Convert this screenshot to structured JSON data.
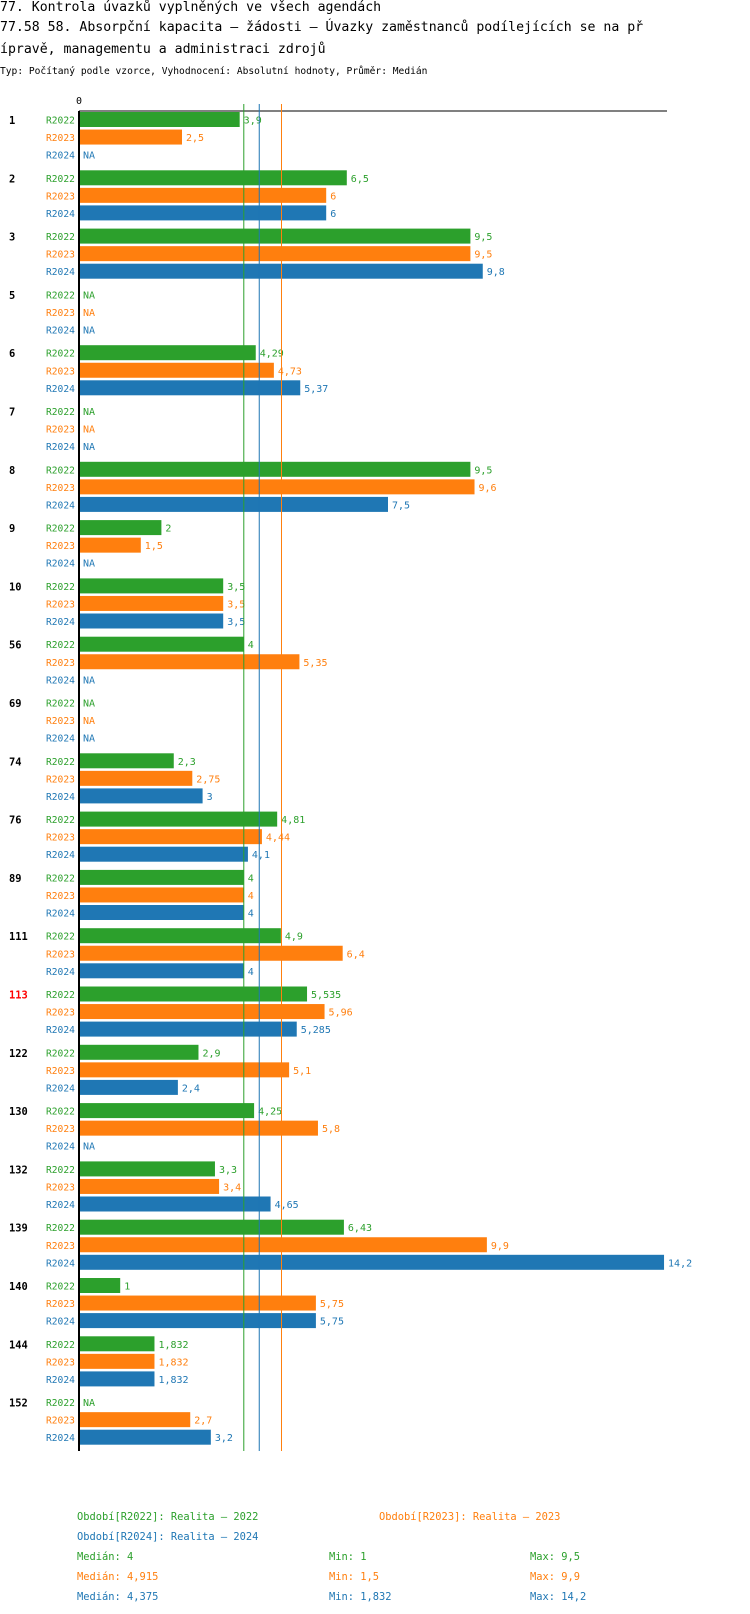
{
  "header": {
    "line1": "77. Kontrola úvazků vyplněných ve všech agendách",
    "line2": "77.58 58. Absorpční kapacita – žádosti – Úvazky zaměstnanců podílejících se na př",
    "line3": "ípravě, managementu a administraci zdrojů",
    "subtitle": "Typ: Počítaný podle vzorce, Vyhodnocení: Absolutní hodnoty, Průměr: Medián"
  },
  "colors": {
    "R2022": "#2ca02c",
    "R2023": "#ff7f0e",
    "R2024": "#1f77b4",
    "highlight": "#ff0000"
  },
  "chart_data": {
    "type": "bar",
    "orientation": "horizontal",
    "title": "77.58 58. Absorpční kapacita – žádosti – Úvazky zaměstnanců podílejících se na přípravě, managementu a administraci zdrojů",
    "axis_zero_label": "0",
    "xlim": [
      0,
      14.2
    ],
    "series_names": [
      "R2022",
      "R2023",
      "R2024"
    ],
    "highlight_category": "113",
    "categories": [
      "1",
      "2",
      "3",
      "5",
      "6",
      "7",
      "8",
      "9",
      "10",
      "56",
      "69",
      "74",
      "76",
      "89",
      "111",
      "113",
      "122",
      "130",
      "132",
      "139",
      "140",
      "144",
      "152"
    ],
    "series": [
      {
        "name": "R2022",
        "values": [
          3.9,
          6.5,
          9.5,
          null,
          4.29,
          null,
          9.5,
          2,
          3.5,
          4,
          null,
          2.3,
          4.81,
          4,
          4.9,
          5.535,
          2.9,
          4.25,
          3.3,
          6.43,
          1,
          1.832,
          null
        ],
        "labels": [
          "3,9",
          "6,5",
          "9,5",
          "NA",
          "4,29",
          "NA",
          "9,5",
          "2",
          "3,5",
          "4",
          "NA",
          "2,3",
          "4,81",
          "4",
          "4,9",
          "5,535",
          "2,9",
          "4,25",
          "3,3",
          "6,43",
          "1",
          "1,832",
          "NA"
        ]
      },
      {
        "name": "R2023",
        "values": [
          2.5,
          6,
          9.5,
          null,
          4.73,
          null,
          9.6,
          1.5,
          3.5,
          5.35,
          null,
          2.75,
          4.44,
          4,
          6.4,
          5.96,
          5.1,
          5.8,
          3.4,
          9.9,
          5.75,
          1.832,
          2.7
        ],
        "labels": [
          "2,5",
          "6",
          "9,5",
          "NA",
          "4,73",
          "NA",
          "9,6",
          "1,5",
          "3,5",
          "5,35",
          "NA",
          "2,75",
          "4,44",
          "4",
          "6,4",
          "5,96",
          "5,1",
          "5,8",
          "3,4",
          "9,9",
          "5,75",
          "1,832",
          "2,7"
        ]
      },
      {
        "name": "R2024",
        "values": [
          null,
          6,
          9.8,
          null,
          5.37,
          null,
          7.5,
          null,
          3.5,
          null,
          null,
          3,
          4.1,
          4,
          4,
          5.285,
          2.4,
          null,
          4.65,
          14.2,
          5.75,
          1.832,
          3.2
        ],
        "labels": [
          "NA",
          "6",
          "9,8",
          "NA",
          "5,37",
          "NA",
          "7,5",
          "NA",
          "3,5",
          "NA",
          "NA",
          "3",
          "4,1",
          "4",
          "4",
          "5,285",
          "2,4",
          "NA",
          "4,65",
          "14,2",
          "5,75",
          "1,832",
          "3,2"
        ]
      }
    ],
    "reference_lines": [
      {
        "series": "R2022",
        "value": 4
      },
      {
        "series": "R2024",
        "value": 4.375
      },
      {
        "series": "R2023",
        "value": 4.915
      }
    ]
  },
  "legend": {
    "items": [
      {
        "series": "R2022",
        "text": "Období[R2022]: Realita – 2022"
      },
      {
        "series": "R2023",
        "text": "Období[R2023]: Realita – 2023"
      },
      {
        "series": "R2024",
        "text": "Období[R2024]: Realita – 2024"
      }
    ]
  },
  "stats": [
    {
      "series": "R2022",
      "median": "Medián: 4",
      "min": "Min: 1",
      "max": "Max: 9,5"
    },
    {
      "series": "R2023",
      "median": "Medián: 4,915",
      "min": "Min: 1,5",
      "max": "Max: 9,9"
    },
    {
      "series": "R2024",
      "median": "Medián: 4,375",
      "min": "Min: 1,832",
      "max": "Max: 14,2"
    }
  ]
}
